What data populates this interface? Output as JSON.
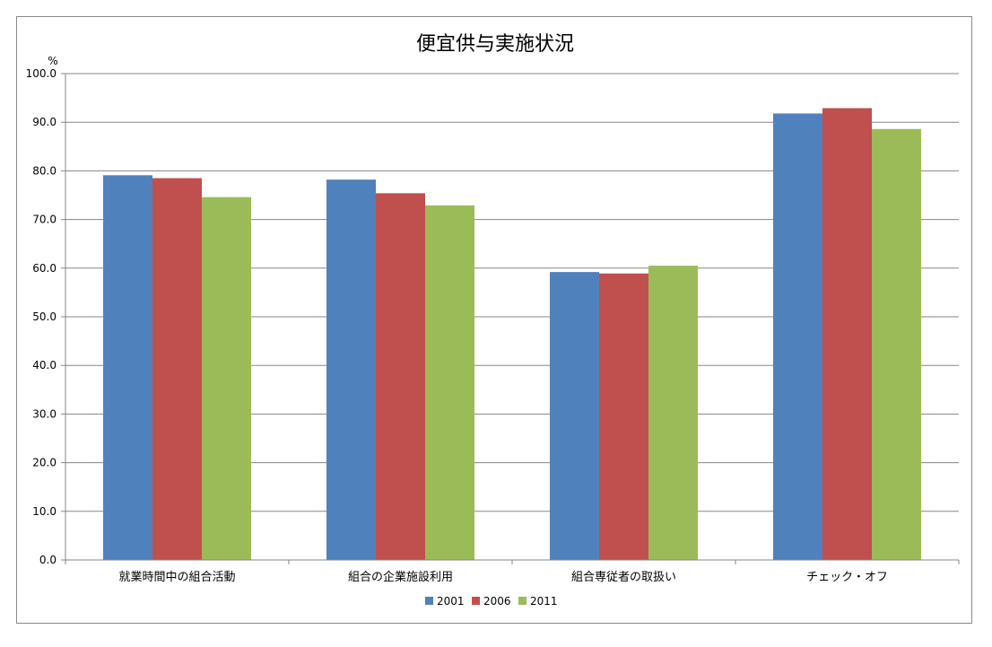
{
  "chart_data": {
    "type": "bar",
    "title": "便宜供与実施状況",
    "ylabel": "%",
    "xlabel": "",
    "ylim": [
      0,
      100
    ],
    "yticks": [
      "0.0",
      "10.0",
      "20.0",
      "30.0",
      "40.0",
      "50.0",
      "60.0",
      "70.0",
      "80.0",
      "90.0",
      "100.0"
    ],
    "categories": [
      "就業時間中の組合活動",
      "組合の企業施設利用",
      "組合専従者の取扱い",
      "チェック・オフ"
    ],
    "series": [
      {
        "name": "2001",
        "color": "#4F81BD",
        "values": [
          79.1,
          78.2,
          59.2,
          91.8
        ]
      },
      {
        "name": "2006",
        "color": "#C0504D",
        "values": [
          78.5,
          75.4,
          58.9,
          92.9
        ]
      },
      {
        "name": "2011",
        "color": "#9BBB59",
        "values": [
          74.6,
          72.9,
          60.5,
          88.6
        ]
      }
    ],
    "grid": true,
    "legend_position": "bottom"
  }
}
